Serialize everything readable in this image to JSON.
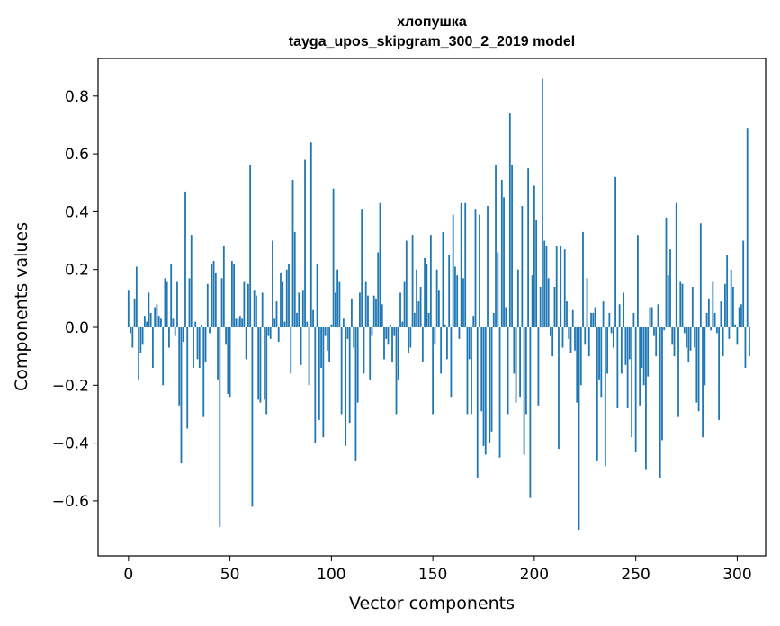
{
  "chart_data": {
    "type": "bar",
    "title": "хлопушка",
    "subtitle": "tayga_upos_skipgram_300_2_2019 model",
    "xlabel": "Vector components",
    "ylabel": "Components values",
    "xlim": [
      -15,
      314
    ],
    "ylim": [
      -0.79,
      0.93
    ],
    "xticks": [
      0,
      50,
      100,
      150,
      200,
      250,
      300
    ],
    "yticks": [
      -0.6,
      -0.4,
      -0.2,
      0.0,
      0.2,
      0.4,
      0.6,
      0.8
    ],
    "ytick_labels": [
      "−0.6",
      "−0.4",
      "−0.2",
      "0.0",
      "0.2",
      "0.4",
      "0.6",
      "0.8"
    ],
    "bar_color": "#1f77b4",
    "grid": false,
    "values": [
      0.13,
      -0.02,
      -0.07,
      0.1,
      0.21,
      -0.18,
      -0.09,
      -0.06,
      0.04,
      0.02,
      0.12,
      0.05,
      -0.14,
      0.07,
      0.08,
      0.04,
      0.03,
      -0.2,
      0.17,
      0.16,
      -0.07,
      0.22,
      0.03,
      -0.03,
      0.16,
      -0.27,
      -0.47,
      -0.05,
      0.47,
      -0.35,
      0.17,
      0.32,
      -0.14,
      0.02,
      -0.11,
      -0.14,
      0.01,
      -0.31,
      -0.12,
      0.15,
      -0.02,
      0.22,
      0.23,
      0.19,
      -0.18,
      -0.69,
      0.17,
      0.28,
      -0.06,
      -0.23,
      -0.24,
      0.23,
      0.22,
      0.03,
      0.03,
      0.04,
      0.03,
      0.16,
      -0.11,
      0.15,
      0.56,
      -0.62,
      0.13,
      0.11,
      -0.25,
      -0.26,
      0.12,
      -0.25,
      -0.3,
      -0.03,
      -0.04,
      0.3,
      0.03,
      0.09,
      -0.05,
      0.19,
      0.16,
      0.02,
      0.2,
      0.22,
      -0.16,
      0.51,
      0.33,
      0.05,
      0.12,
      -0.13,
      0.13,
      0.58,
      0.02,
      -0.2,
      0.64,
      0.06,
      -0.4,
      0.22,
      -0.32,
      -0.14,
      -0.38,
      -0.03,
      -0.08,
      -0.12,
      0.01,
      0.48,
      0.12,
      0.2,
      0.16,
      -0.3,
      0.03,
      -0.41,
      -0.04,
      -0.33,
      0.1,
      -0.07,
      -0.46,
      -0.26,
      0.12,
      0.41,
      -0.16,
      0.16,
      0.11,
      -0.18,
      -0.03,
      0.11,
      0.1,
      0.26,
      0.43,
      0.08,
      -0.11,
      -0.04,
      -0.06,
      0.01,
      -0.12,
      -0.03,
      -0.3,
      -0.18,
      0.12,
      0.02,
      0.16,
      0.3,
      -0.09,
      -0.07,
      0.32,
      0.05,
      0.2,
      0.09,
      0.14,
      -0.12,
      0.24,
      0.22,
      0.05,
      0.32,
      -0.3,
      -0.06,
      0.2,
      0.13,
      -0.16,
      0.33,
      0.01,
      -0.11,
      0.25,
      -0.24,
      0.39,
      0.21,
      0.18,
      -0.04,
      0.43,
      0.17,
      0.43,
      -0.3,
      -0.11,
      -0.3,
      0.04,
      0.41,
      -0.52,
      0.39,
      -0.29,
      -0.41,
      -0.44,
      0.42,
      -0.4,
      -0.36,
      0.05,
      0.56,
      0.26,
      -0.45,
      0.51,
      0.45,
      0.07,
      -0.3,
      0.74,
      0.56,
      -0.16,
      -0.26,
      0.2,
      -0.24,
      0.42,
      -0.44,
      -0.3,
      0.55,
      -0.59,
      0.18,
      0.49,
      0.37,
      -0.27,
      0.14,
      0.86,
      0.3,
      0.28,
      0.17,
      -0.03,
      -0.1,
      0.14,
      0.28,
      -0.42,
      0.28,
      -0.07,
      0.27,
      0.09,
      -0.04,
      -0.09,
      0.06,
      -0.08,
      -0.26,
      -0.7,
      -0.2,
      0.33,
      -0.06,
      0.17,
      -0.1,
      0.05,
      0.05,
      0.07,
      -0.46,
      -0.18,
      -0.24,
      0.09,
      -0.48,
      -0.16,
      0.05,
      -0.02,
      -0.07,
      0.52,
      -0.28,
      0.08,
      -0.16,
      0.12,
      -0.13,
      -0.28,
      -0.11,
      -0.38,
      0.05,
      -0.43,
      0.32,
      -0.27,
      -0.14,
      -0.2,
      -0.49,
      -0.17,
      0.07,
      0.07,
      -0.03,
      -0.1,
      0.08,
      -0.52,
      -0.39,
      -0.01,
      0.38,
      0.18,
      0.27,
      -0.06,
      -0.1,
      0.43,
      -0.31,
      0.16,
      0.15,
      -0.02,
      -0.07,
      -0.12,
      -0.08,
      0.14,
      -0.07,
      -0.26,
      -0.29,
      0.36,
      -0.38,
      -0.2,
      0.05,
      0.1,
      -0.01,
      0.16,
      0.05,
      -0.02,
      -0.32,
      0.09,
      -0.1,
      0.15,
      0.25,
      -0.04,
      0.2,
      0.14,
      0.01,
      -0.06,
      0.07,
      0.08,
      0.3,
      -0.14,
      0.69,
      -0.1
    ]
  }
}
